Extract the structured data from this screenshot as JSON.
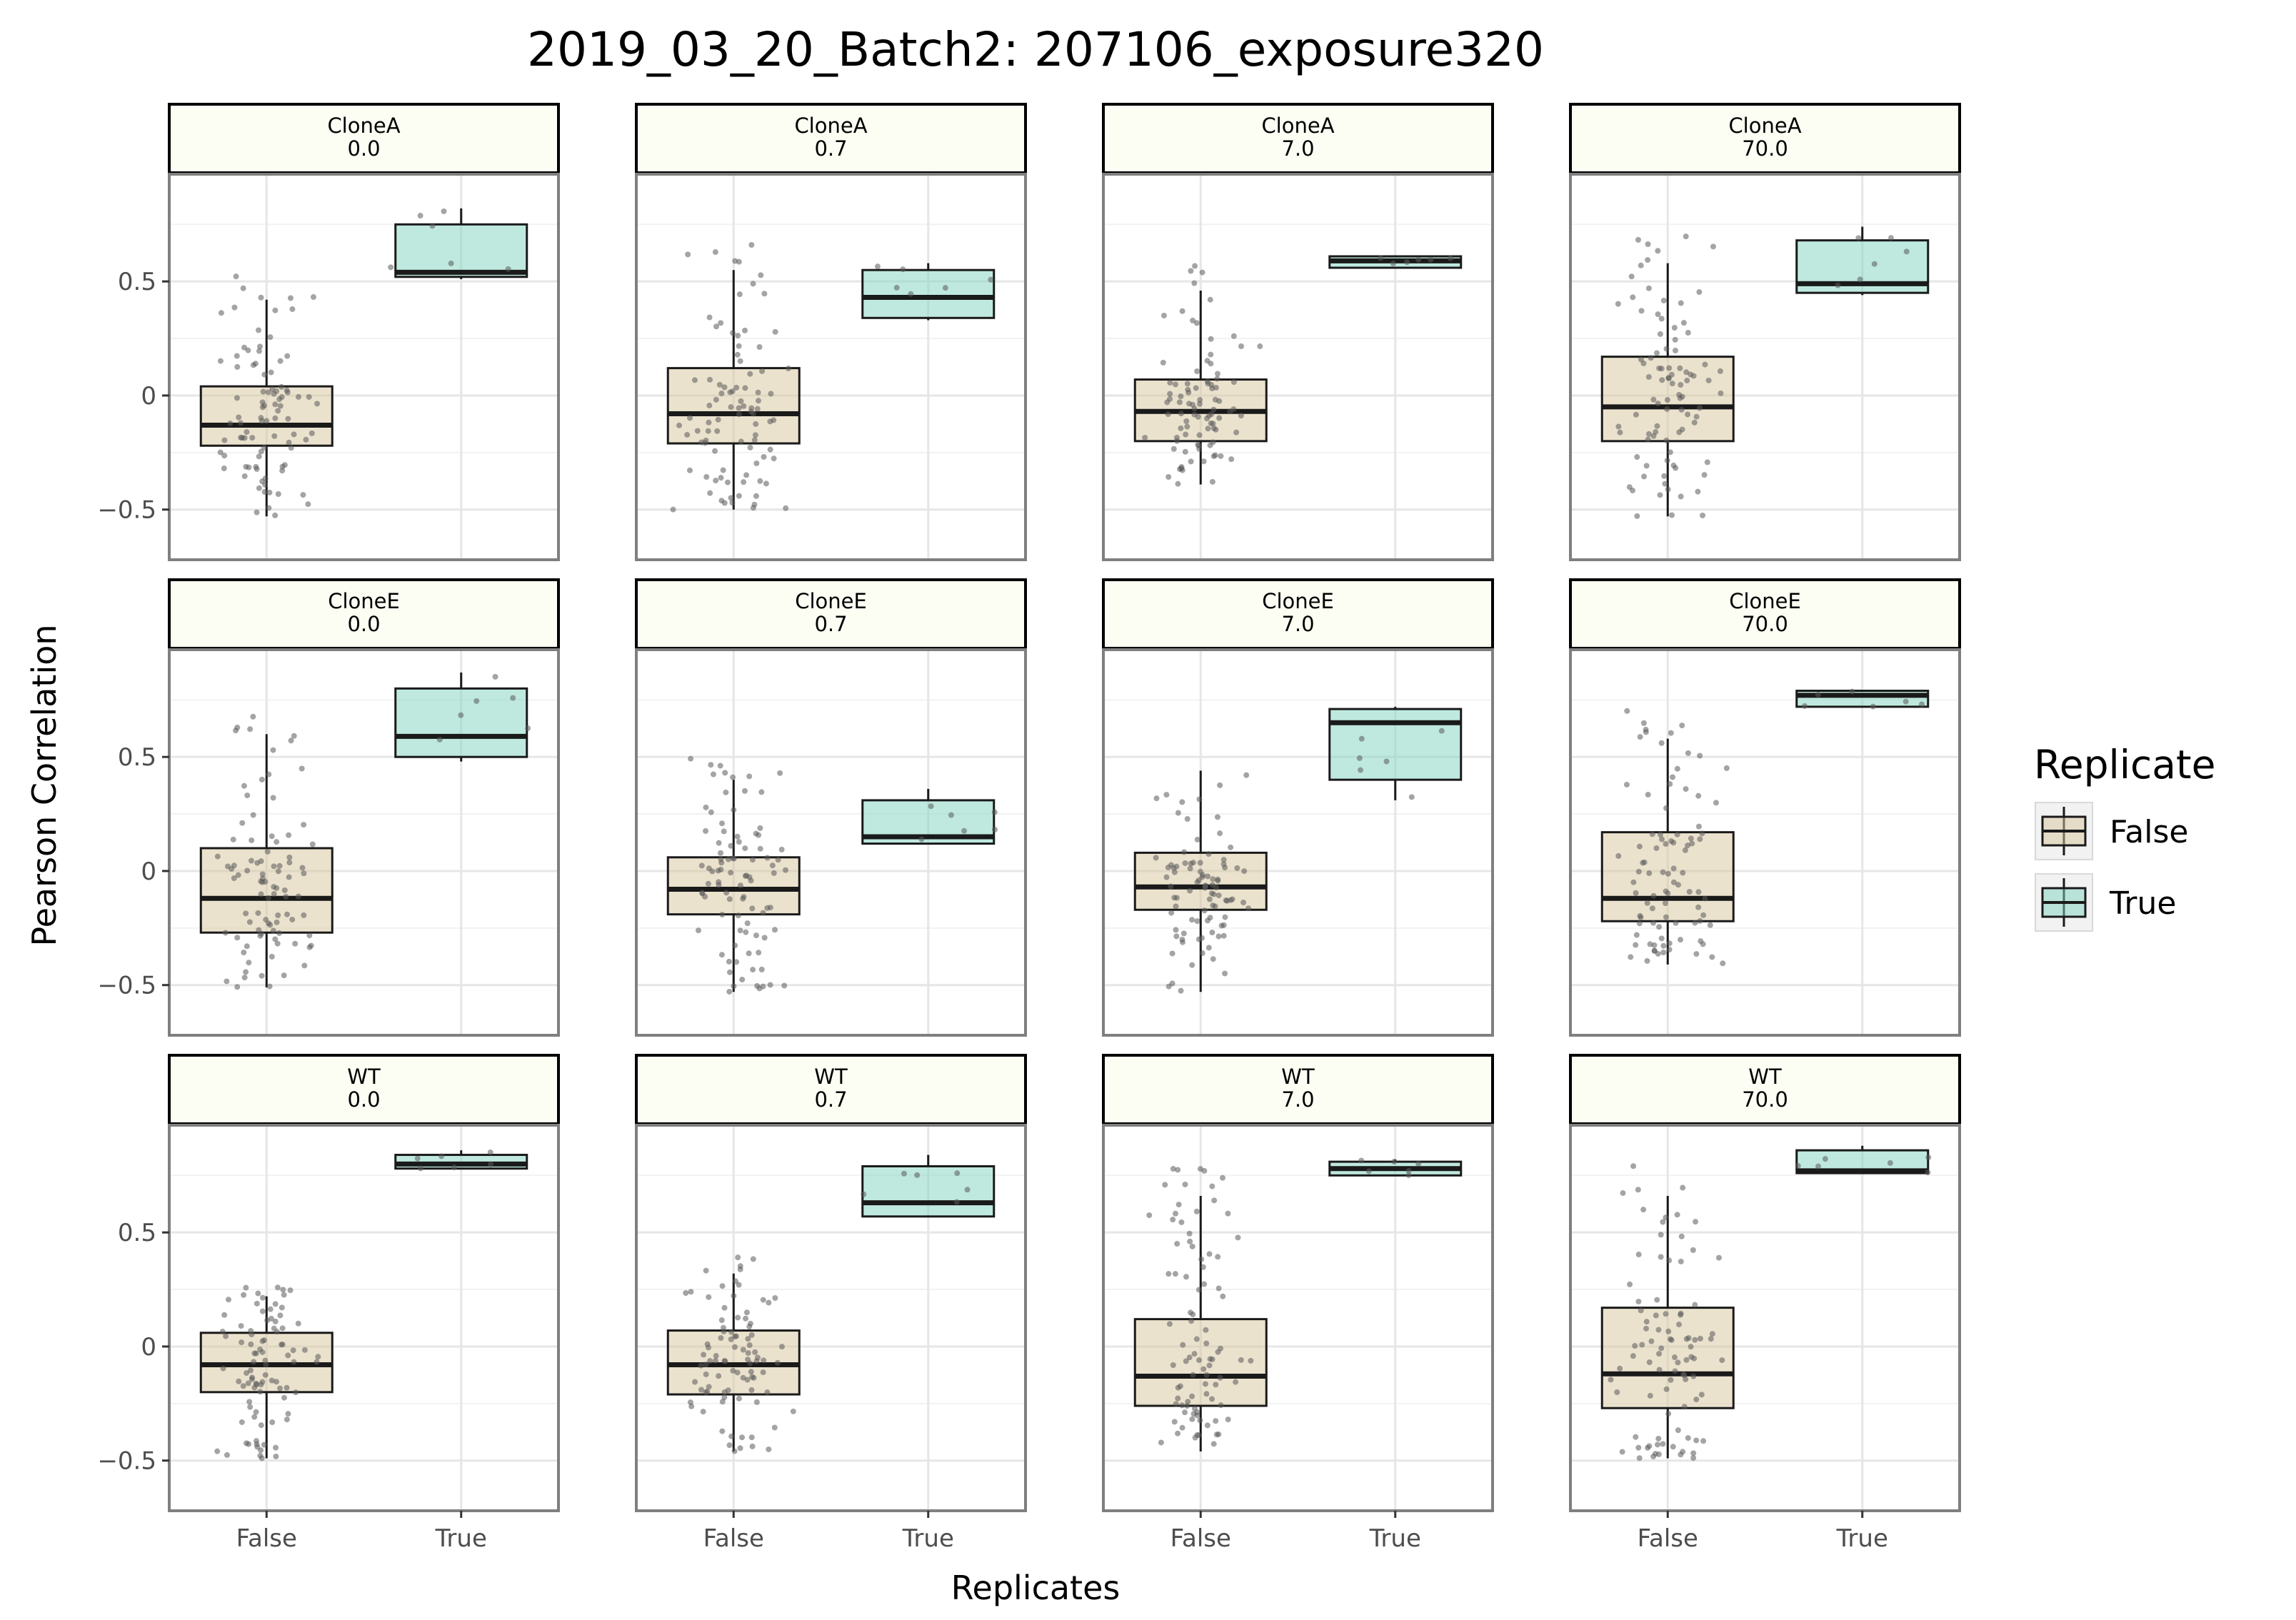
{
  "chart_data": {
    "type": "box",
    "title": "2019_03_20_Batch2: 207106_exposure320",
    "xlabel": "Replicates",
    "ylabel": "Pearson Correlation",
    "categories": [
      "False",
      "True"
    ],
    "ylim": [
      -0.72,
      0.97
    ],
    "yticks": [
      {
        "value": 0.5,
        "label": "0.5"
      },
      {
        "value": 0,
        "label": "0"
      },
      {
        "value": -0.5,
        "label": "−0.5"
      }
    ],
    "grid": true,
    "legend": {
      "title": "Replicate",
      "position": "right",
      "entries": [
        {
          "label": "False",
          "color": "#d7c59e"
        },
        {
          "label": "True",
          "color": "#80d4c0"
        }
      ]
    },
    "colors": {
      "false_fill": "#d7c59e",
      "true_fill": "#80d4c0",
      "strip_fill": "#fcfdf3",
      "panel_border": "#7f7f7f",
      "grid": "#e6e6e6",
      "points": "#5a5a5a"
    },
    "facet_rows": [
      "CloneA",
      "CloneE",
      "WT"
    ],
    "facet_cols": [
      "0.0",
      "0.7",
      "7.0",
      "70.0"
    ],
    "panels": [
      {
        "strip_top": "CloneA",
        "strip_bottom": "0.0",
        "false": {
          "min": -0.53,
          "q1": -0.22,
          "median": -0.13,
          "q3": 0.04,
          "max": 0.42
        },
        "true": {
          "min": 0.51,
          "q1": 0.52,
          "median": 0.54,
          "q3": 0.75,
          "max": 0.82
        }
      },
      {
        "strip_top": "CloneA",
        "strip_bottom": "0.7",
        "false": {
          "min": -0.5,
          "q1": -0.21,
          "median": -0.08,
          "q3": 0.12,
          "max": 0.55
        },
        "true": {
          "min": 0.33,
          "q1": 0.34,
          "median": 0.43,
          "q3": 0.55,
          "max": 0.58
        }
      },
      {
        "strip_top": "CloneA",
        "strip_bottom": "7.0",
        "false": {
          "min": -0.39,
          "q1": -0.2,
          "median": -0.07,
          "q3": 0.07,
          "max": 0.46
        },
        "true": {
          "min": 0.56,
          "q1": 0.56,
          "median": 0.59,
          "q3": 0.61,
          "max": 0.61
        }
      },
      {
        "strip_top": "CloneA",
        "strip_bottom": "70.0",
        "false": {
          "min": -0.53,
          "q1": -0.2,
          "median": -0.05,
          "q3": 0.17,
          "max": 0.58
        },
        "true": {
          "min": 0.44,
          "q1": 0.45,
          "median": 0.49,
          "q3": 0.68,
          "max": 0.74
        }
      },
      {
        "strip_top": "CloneE",
        "strip_bottom": "0.0",
        "false": {
          "min": -0.51,
          "q1": -0.27,
          "median": -0.12,
          "q3": 0.1,
          "max": 0.6
        },
        "true": {
          "min": 0.48,
          "q1": 0.5,
          "median": 0.59,
          "q3": 0.8,
          "max": 0.87
        }
      },
      {
        "strip_top": "CloneE",
        "strip_bottom": "0.7",
        "false": {
          "min": -0.53,
          "q1": -0.19,
          "median": -0.08,
          "q3": 0.06,
          "max": 0.4
        },
        "true": {
          "min": 0.12,
          "q1": 0.12,
          "median": 0.15,
          "q3": 0.31,
          "max": 0.36
        }
      },
      {
        "strip_top": "CloneE",
        "strip_bottom": "7.0",
        "false": {
          "min": -0.53,
          "q1": -0.17,
          "median": -0.07,
          "q3": 0.08,
          "max": 0.44
        },
        "true": {
          "min": 0.31,
          "q1": 0.4,
          "median": 0.65,
          "q3": 0.71,
          "max": 0.72
        }
      },
      {
        "strip_top": "CloneE",
        "strip_bottom": "70.0",
        "false": {
          "min": -0.41,
          "q1": -0.22,
          "median": -0.12,
          "q3": 0.17,
          "max": 0.58
        },
        "true": {
          "min": 0.72,
          "q1": 0.72,
          "median": 0.77,
          "q3": 0.79,
          "max": 0.79
        }
      },
      {
        "strip_top": "WT",
        "strip_bottom": "0.0",
        "false": {
          "min": -0.49,
          "q1": -0.2,
          "median": -0.08,
          "q3": 0.06,
          "max": 0.22
        },
        "true": {
          "min": 0.78,
          "q1": 0.78,
          "median": 0.8,
          "q3": 0.84,
          "max": 0.86
        }
      },
      {
        "strip_top": "WT",
        "strip_bottom": "0.7",
        "false": {
          "min": -0.46,
          "q1": -0.21,
          "median": -0.08,
          "q3": 0.07,
          "max": 0.32
        },
        "true": {
          "min": 0.57,
          "q1": 0.57,
          "median": 0.63,
          "q3": 0.79,
          "max": 0.84
        }
      },
      {
        "strip_top": "WT",
        "strip_bottom": "7.0",
        "false": {
          "min": -0.46,
          "q1": -0.26,
          "median": -0.13,
          "q3": 0.12,
          "max": 0.66
        },
        "true": {
          "min": 0.75,
          "q1": 0.75,
          "median": 0.78,
          "q3": 0.81,
          "max": 0.82
        }
      },
      {
        "strip_top": "WT",
        "strip_bottom": "70.0",
        "false": {
          "min": -0.49,
          "q1": -0.27,
          "median": -0.12,
          "q3": 0.17,
          "max": 0.66
        },
        "true": {
          "min": 0.76,
          "q1": 0.76,
          "median": 0.77,
          "q3": 0.86,
          "max": 0.88
        }
      }
    ]
  }
}
